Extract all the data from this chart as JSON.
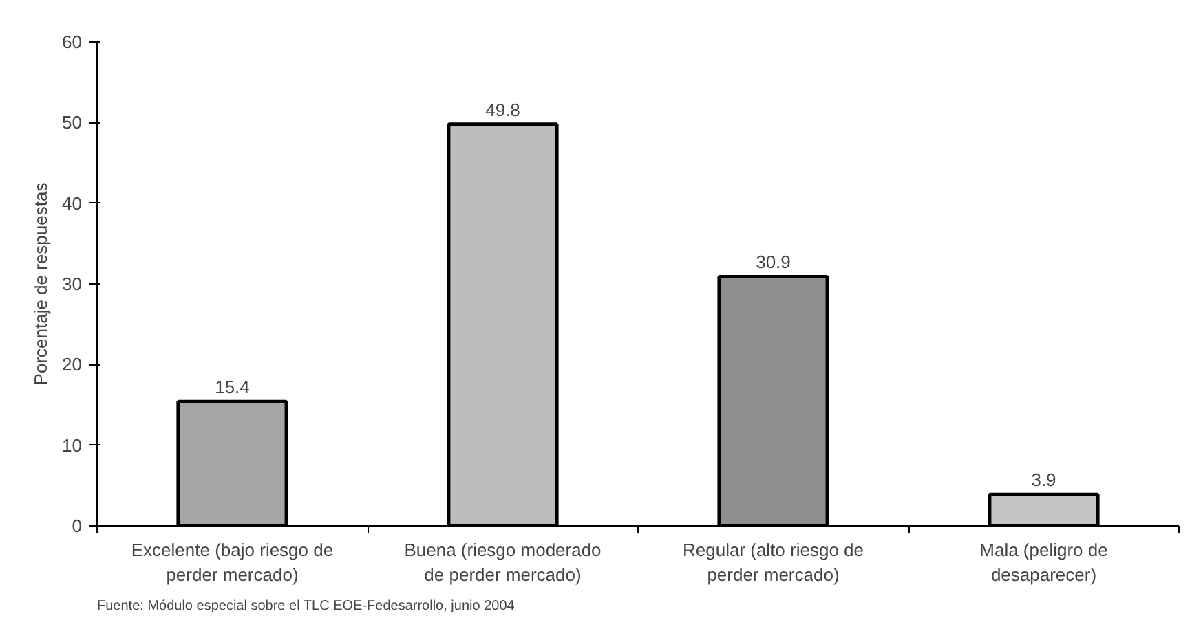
{
  "chart_data": {
    "type": "bar",
    "ylabel": "Porcentaje de respuestas",
    "categories": [
      "Excelente (bajo riesgo de\nperder mercado)",
      "Buena (riesgo moderado\nde perder mercado)",
      "Regular (alto riesgo de\nperder mercado)",
      "Mala (peligro de\ndesaparecer)"
    ],
    "values": [
      15.4,
      49.8,
      30.9,
      3.9
    ],
    "colors": [
      "#a6a6a6",
      "#bdbdbd",
      "#8f8f8f",
      "#c4c4c4"
    ],
    "ylim": [
      0,
      60
    ],
    "yticks": [
      0,
      10,
      20,
      30,
      40,
      50,
      60
    ],
    "data_labels": true,
    "grid": false,
    "annotations": [
      "Fuente: Módulo especial sobre el TLC EOE-Fedesarrollo, junio 2004"
    ]
  }
}
